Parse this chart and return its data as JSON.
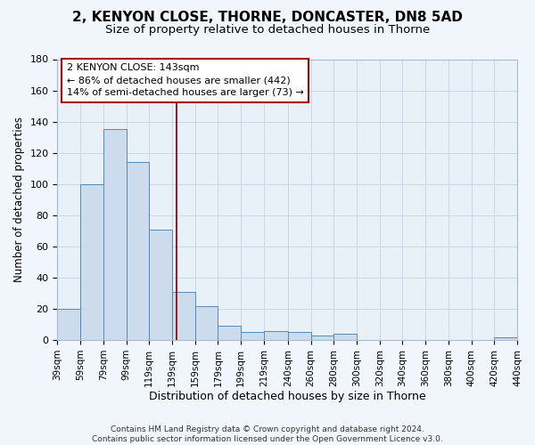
{
  "title": "2, KENYON CLOSE, THORNE, DONCASTER, DN8 5AD",
  "subtitle": "Size of property relative to detached houses in Thorne",
  "xlabel": "Distribution of detached houses by size in Thorne",
  "ylabel": "Number of detached properties",
  "bar_left_edges": [
    39,
    59,
    79,
    99,
    119,
    139,
    159,
    179,
    199,
    219,
    240,
    260,
    280,
    300,
    320,
    340,
    360,
    380,
    400,
    420
  ],
  "bar_widths": [
    20,
    20,
    20,
    20,
    20,
    20,
    20,
    20,
    20,
    21,
    20,
    20,
    20,
    20,
    20,
    20,
    20,
    20,
    20,
    20
  ],
  "bar_heights": [
    20,
    100,
    135,
    114,
    71,
    31,
    22,
    9,
    5,
    6,
    5,
    3,
    4,
    0,
    0,
    0,
    0,
    0,
    0,
    2
  ],
  "bar_color": "#ccdcec",
  "bar_edge_color": "#5588bb",
  "xlim": [
    39,
    440
  ],
  "ylim": [
    0,
    180
  ],
  "yticks": [
    0,
    20,
    40,
    60,
    80,
    100,
    120,
    140,
    160,
    180
  ],
  "xtick_labels": [
    "39sqm",
    "59sqm",
    "79sqm",
    "99sqm",
    "119sqm",
    "139sqm",
    "159sqm",
    "179sqm",
    "199sqm",
    "219sqm",
    "240sqm",
    "260sqm",
    "280sqm",
    "300sqm",
    "320sqm",
    "340sqm",
    "360sqm",
    "380sqm",
    "400sqm",
    "420sqm",
    "440sqm"
  ],
  "xtick_positions": [
    39,
    59,
    79,
    99,
    119,
    139,
    159,
    179,
    199,
    219,
    240,
    260,
    280,
    300,
    320,
    340,
    360,
    380,
    400,
    420,
    440
  ],
  "vline_x": 143,
  "vline_color": "#aa0000",
  "annotation_line1": "2 KENYON CLOSE: 143sqm",
  "annotation_line2": "← 86% of detached houses are smaller (442)",
  "annotation_line3": "14% of semi-detached houses are larger (73) →",
  "annotation_box_edge_color": "#aa0000",
  "grid_color": "#c8d8e8",
  "bg_color": "#e8f0f8",
  "fig_bg_color": "#f0f6fc",
  "footnote": "Contains HM Land Registry data © Crown copyright and database right 2024.\nContains public sector information licensed under the Open Government Licence v3.0.",
  "title_fontsize": 11,
  "subtitle_fontsize": 9.5,
  "xlabel_fontsize": 9,
  "ylabel_fontsize": 8.5,
  "annotation_fontsize": 8,
  "tick_fontsize": 7.5,
  "ytick_fontsize": 8,
  "footnote_fontsize": 6.5
}
